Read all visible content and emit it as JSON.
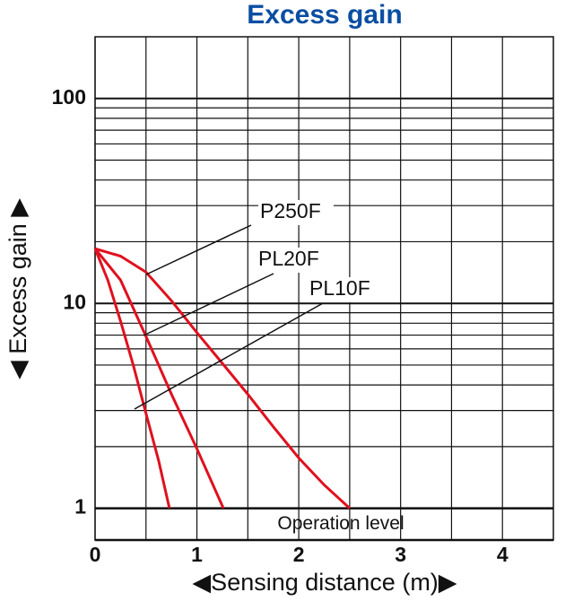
{
  "chart_data": {
    "type": "line",
    "title": "Excess gain",
    "x_label": "◀Sensing distance (m)▶",
    "y_label": "◀ Excess gain ▶",
    "log_y": true,
    "grid": true,
    "xlim": [
      0,
      4.5
    ],
    "xticks": [
      0,
      1,
      2,
      3,
      4
    ],
    "x_minor_ticks": [
      0.5,
      1.5,
      2.5,
      3.5
    ],
    "ylim": [
      0.7,
      200
    ],
    "yticks": [
      1,
      10,
      100
    ],
    "y_minor_ticks": [
      2,
      3,
      4,
      5,
      6,
      7,
      8,
      9,
      20,
      30,
      40,
      50,
      60,
      70,
      80,
      90
    ],
    "reference_line": {
      "value": 1,
      "label": "Operation level"
    },
    "series": [
      {
        "name": "P250F",
        "color": "#e0101e",
        "x": [
          0,
          0.25,
          0.5,
          0.75,
          1,
          1.25,
          1.5,
          1.75,
          2,
          2.25,
          2.5
        ],
        "values": [
          18.5,
          17,
          14.2,
          10.3,
          7.2,
          5.1,
          3.6,
          2.5,
          1.76,
          1.3,
          1
        ]
      },
      {
        "name": "PL20F",
        "color": "#e0101e",
        "x": [
          0,
          0.25,
          0.5,
          0.75,
          1,
          1.26
        ],
        "values": [
          18.5,
          13,
          6.9,
          3.6,
          1.95,
          1
        ]
      },
      {
        "name": "PL10F",
        "color": "#e0101e",
        "x": [
          0,
          0.125,
          0.25,
          0.375,
          0.5,
          0.625,
          0.73
        ],
        "values": [
          18.5,
          13,
          8.2,
          5,
          2.9,
          1.7,
          1
        ]
      }
    ]
  }
}
